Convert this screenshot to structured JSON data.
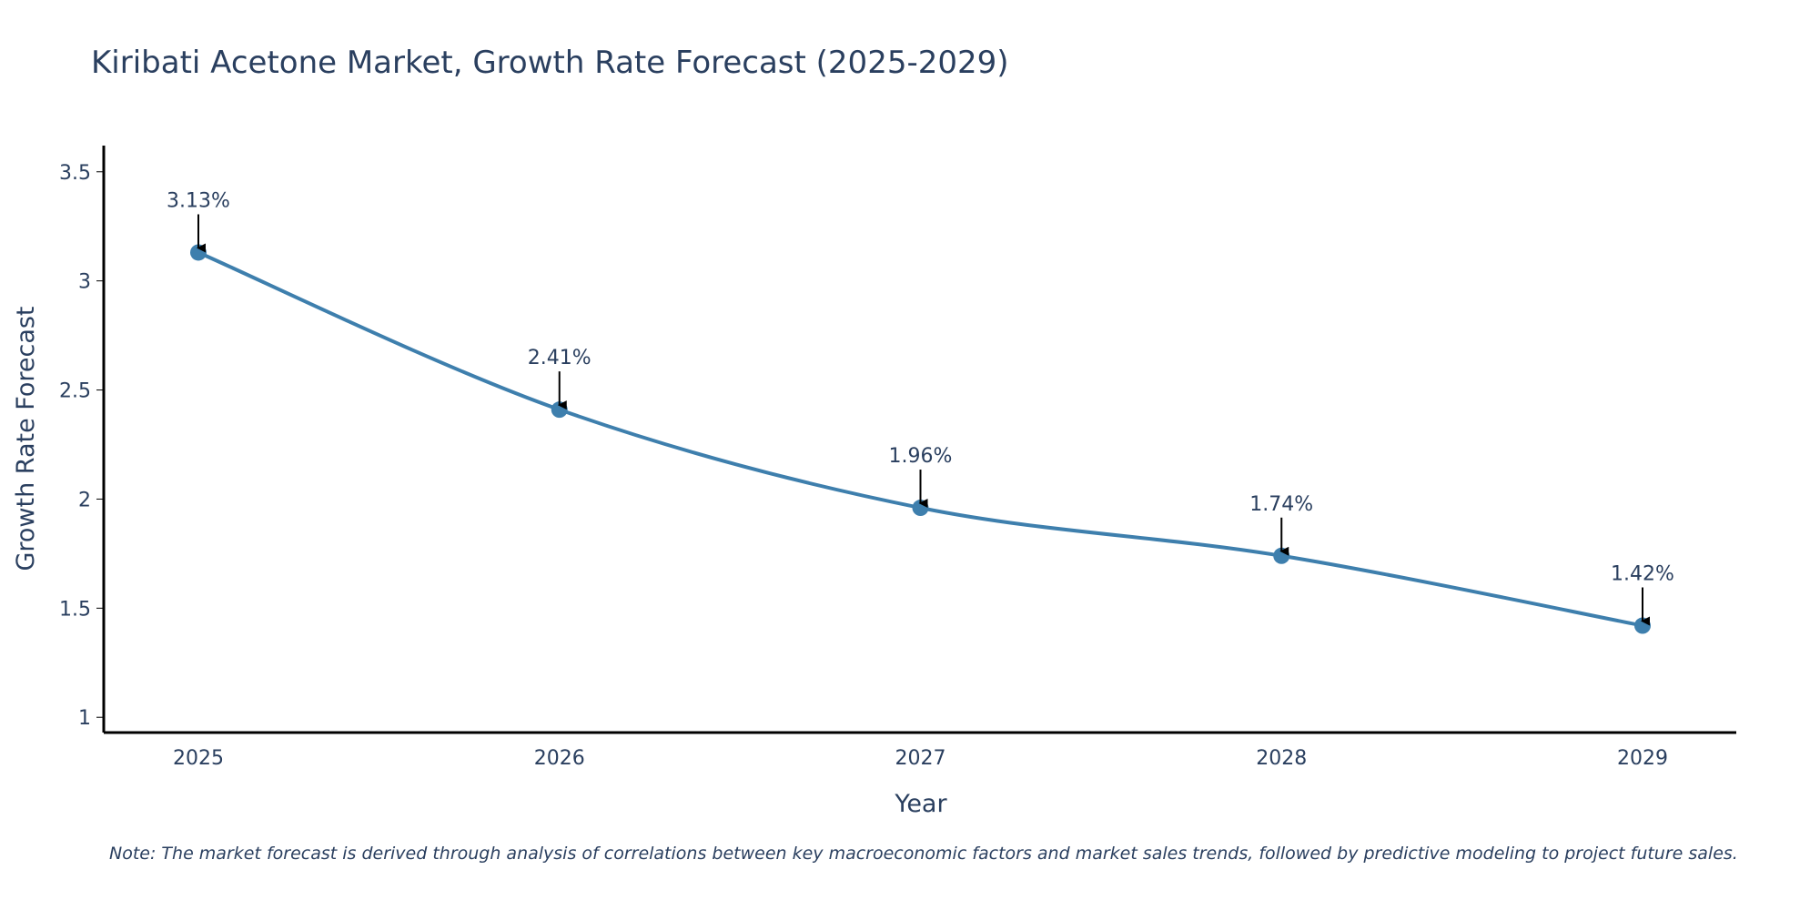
{
  "chart_data": {
    "type": "line",
    "title": "Kiribati Acetone Market, Growth Rate Forecast (2025-2029)",
    "xlabel": "Year",
    "ylabel": "Growth Rate Forecast",
    "categories": [
      "2025",
      "2026",
      "2027",
      "2028",
      "2029"
    ],
    "series": [
      {
        "name": "Growth Rate Forecast",
        "values": [
          3.13,
          2.41,
          1.96,
          1.74,
          1.42
        ],
        "labels": [
          "3.13%",
          "2.41%",
          "1.96%",
          "1.74%",
          "1.42%"
        ],
        "color": "#3e7fad"
      }
    ],
    "ylim": [
      0.93,
      3.62
    ],
    "yticks": [
      1,
      1.5,
      2,
      2.5,
      3,
      3.5
    ],
    "ytick_labels": [
      "1",
      "1.5",
      "2",
      "2.5",
      "3",
      "3.5"
    ],
    "grid": false,
    "legend": "none",
    "note": "Note: The market forecast is derived through analysis of correlations between key macroeconomic factors and market sales trends, followed by predictive modeling to project future sales."
  },
  "colors": {
    "line": "#3e7fad",
    "text": "#2a3f5f",
    "axis": "#000000",
    "arrow": "#000000"
  }
}
